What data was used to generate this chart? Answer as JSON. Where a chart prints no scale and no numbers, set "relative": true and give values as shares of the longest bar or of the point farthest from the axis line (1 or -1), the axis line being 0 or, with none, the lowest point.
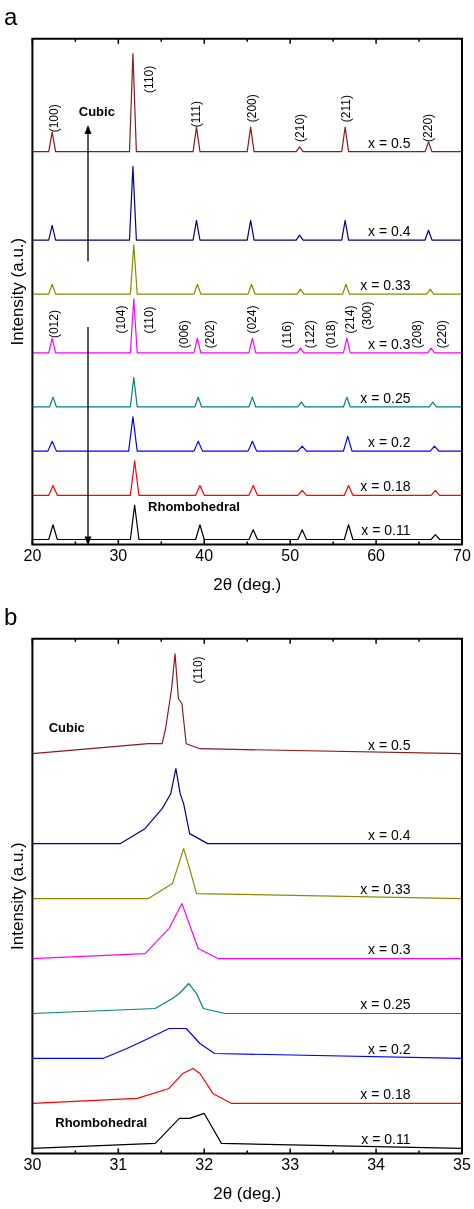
{
  "chart_data": [
    {
      "type": "line",
      "title": "a",
      "xlabel": "2θ (deg.)",
      "ylabel": "Intensity (a.u.)",
      "relative": true,
      "legend": false,
      "grid": false,
      "tick_labels": "x",
      "marker": "none",
      "line_style": "solid",
      "xlim": [
        20,
        70
      ],
      "xticks": [
        20,
        {
          "value": 25,
          "label": null
        },
        30,
        {
          "value": 35,
          "label": null
        },
        40,
        {
          "value": 45,
          "label": null
        },
        50,
        {
          "value": 55,
          "label": null
        },
        60,
        {
          "value": 65,
          "label": null
        },
        70
      ],
      "series": [
        {
          "name": "x = 0.5",
          "color": "#8b1a1a",
          "x": [
            20,
            21.9,
            22.3,
            22.7,
            31.3,
            31.7,
            32.1,
            38.7,
            39.1,
            39.5,
            45,
            45.4,
            45.8,
            50.7,
            51.1,
            51.5,
            56,
            56.4,
            56.8,
            65.7,
            66.1,
            66.5,
            70
          ],
          "values": [
            0.8,
            0.8,
            0.84,
            0.8,
            0.8,
            1.0,
            0.8,
            0.8,
            0.85,
            0.8,
            0.8,
            0.85,
            0.8,
            0.8,
            0.81,
            0.8,
            0.8,
            0.85,
            0.8,
            0.8,
            0.82,
            0.8,
            0.8
          ]
        },
        {
          "name": "x = 0.4",
          "color": "#00008b",
          "x": [
            20,
            21.9,
            22.3,
            22.7,
            31.3,
            31.7,
            32.1,
            38.7,
            39.1,
            39.5,
            45,
            45.4,
            45.8,
            50.7,
            51.1,
            51.5,
            56,
            56.4,
            56.8,
            65.7,
            66.1,
            66.5,
            70
          ],
          "values": [
            0.62,
            0.62,
            0.65,
            0.62,
            0.62,
            0.77,
            0.62,
            0.62,
            0.66,
            0.62,
            0.62,
            0.66,
            0.62,
            0.62,
            0.63,
            0.62,
            0.62,
            0.66,
            0.62,
            0.62,
            0.64,
            0.62,
            0.62
          ]
        },
        {
          "name": "x = 0.33",
          "color": "#8b8b00",
          "x": [
            20,
            21.9,
            22.3,
            22.7,
            31.4,
            31.8,
            32.2,
            38.8,
            39.2,
            39.6,
            45.1,
            45.5,
            45.9,
            50.8,
            51.2,
            51.6,
            56.1,
            56.5,
            56.9,
            65.9,
            66.3,
            66.7,
            70
          ],
          "values": [
            0.51,
            0.51,
            0.53,
            0.51,
            0.51,
            0.61,
            0.51,
            0.51,
            0.53,
            0.51,
            0.51,
            0.53,
            0.51,
            0.51,
            0.52,
            0.51,
            0.51,
            0.53,
            0.51,
            0.51,
            0.52,
            0.51,
            0.51
          ]
        },
        {
          "name": "x = 0.3",
          "color": "#ff00ff",
          "x": [
            20,
            21.9,
            22.3,
            22.7,
            31.4,
            31.8,
            32.2,
            38.8,
            39.2,
            39.6,
            45.2,
            45.6,
            46,
            50.8,
            51.2,
            51.6,
            56.2,
            56.6,
            57,
            66,
            66.4,
            66.8,
            70
          ],
          "values": [
            0.39,
            0.39,
            0.42,
            0.39,
            0.39,
            0.5,
            0.39,
            0.39,
            0.42,
            0.39,
            0.39,
            0.42,
            0.39,
            0.39,
            0.4,
            0.39,
            0.39,
            0.42,
            0.39,
            0.39,
            0.4,
            0.39,
            0.39
          ]
        },
        {
          "name": "x = 0.25",
          "color": "#008080",
          "x": [
            20,
            22,
            22.4,
            22.8,
            31.4,
            31.8,
            32.2,
            38.9,
            39.3,
            39.7,
            45.2,
            45.6,
            46,
            50.9,
            51.3,
            51.7,
            56.2,
            56.6,
            57,
            66.2,
            66.6,
            67,
            70
          ],
          "values": [
            0.28,
            0.28,
            0.3,
            0.28,
            0.28,
            0.34,
            0.28,
            0.28,
            0.3,
            0.28,
            0.28,
            0.3,
            0.28,
            0.28,
            0.29,
            0.28,
            0.28,
            0.3,
            0.28,
            0.28,
            0.29,
            0.28,
            0.28
          ]
        },
        {
          "name": "x = 0.2",
          "color": "#0000ff",
          "x": [
            20,
            21.8,
            22.3,
            22.8,
            31.2,
            31.7,
            32.2,
            38.8,
            39.3,
            39.8,
            45.1,
            45.6,
            46.1,
            50.9,
            51.4,
            51.9,
            56.2,
            56.7,
            57.2,
            66.3,
            66.8,
            67.3,
            70
          ],
          "values": [
            0.19,
            0.19,
            0.21,
            0.19,
            0.19,
            0.26,
            0.19,
            0.19,
            0.21,
            0.19,
            0.19,
            0.21,
            0.19,
            0.19,
            0.2,
            0.19,
            0.19,
            0.22,
            0.19,
            0.19,
            0.2,
            0.19,
            0.19
          ]
        },
        {
          "name": "x = 0.18",
          "color": "#ff0000",
          "x": [
            20,
            21.9,
            22.4,
            22.9,
            31.4,
            31.9,
            32.4,
            39,
            39.5,
            40,
            45.2,
            45.7,
            46.2,
            50.9,
            51.4,
            51.9,
            56.3,
            56.8,
            57.3,
            66.4,
            66.9,
            67.4,
            70
          ],
          "values": [
            0.1,
            0.1,
            0.12,
            0.1,
            0.1,
            0.17,
            0.1,
            0.1,
            0.12,
            0.1,
            0.1,
            0.12,
            0.1,
            0.1,
            0.11,
            0.1,
            0.1,
            0.12,
            0.1,
            0.1,
            0.11,
            0.1,
            0.1
          ]
        },
        {
          "name": "x = 0.11",
          "color": "#000000",
          "x": [
            20,
            21.9,
            22.4,
            22.9,
            31.4,
            31.9,
            32.4,
            39,
            39.5,
            40,
            45.2,
            45.7,
            46.2,
            50.9,
            51.4,
            51.9,
            56.3,
            56.8,
            57.3,
            66.4,
            66.9,
            67.4,
            70
          ],
          "values": [
            0.01,
            0.01,
            0.04,
            0.01,
            0.01,
            0.08,
            0.01,
            0.01,
            0.04,
            0.01,
            0.01,
            0.03,
            0.01,
            0.01,
            0.03,
            0.01,
            0.01,
            0.04,
            0.01,
            0.01,
            0.02,
            0.01,
            0.01
          ]
        }
      ],
      "annotations": [
        "Cubic",
        "Rhombohedral",
        "(100)",
        "(110)",
        "(111)",
        "(200)",
        "(210)",
        "(211)",
        "(220)",
        "(012)",
        "(104)",
        "(110)",
        "(006)",
        "(202)",
        "(024)",
        "(116)",
        "(122)",
        "(018)",
        "(214)",
        "(300)",
        "(208)",
        "(220)"
      ]
    },
    {
      "type": "line",
      "title": "b",
      "xlabel": "2θ (deg.)",
      "ylabel": "Intensity (a.u.)",
      "relative": true,
      "legend": false,
      "grid": false,
      "tick_labels": "x",
      "marker": "none",
      "line_style": "solid",
      "xlim": [
        30,
        35
      ],
      "xticks": [
        30,
        {
          "value": 30.5,
          "label": null
        },
        31,
        {
          "value": 31.5,
          "label": null
        },
        32,
        {
          "value": 32.5,
          "label": null
        },
        33,
        {
          "value": 33.5,
          "label": null
        },
        34,
        {
          "value": 34.5,
          "label": null
        },
        35
      ],
      "series": [
        {
          "name": "x = 0.5",
          "color": "#8b1a1a",
          "x": [
            30,
            31.35,
            31.51,
            31.55,
            31.62,
            31.66,
            31.7,
            31.74,
            31.79,
            31.95,
            35
          ],
          "values": [
            0.8,
            0.82,
            0.82,
            0.85,
            0.93,
            1.0,
            0.91,
            0.9,
            0.82,
            0.81,
            0.8
          ]
        },
        {
          "name": "x = 0.4",
          "color": "#00008b",
          "x": [
            30,
            31.02,
            31.31,
            31.51,
            31.61,
            31.67,
            31.72,
            31.76,
            31.83,
            32.04,
            35
          ],
          "values": [
            0.62,
            0.62,
            0.65,
            0.69,
            0.72,
            0.77,
            0.72,
            0.7,
            0.64,
            0.62,
            0.62
          ]
        },
        {
          "name": "x = 0.33",
          "color": "#8b8b00",
          "x": [
            30,
            31.35,
            31.63,
            31.76,
            31.83,
            31.91,
            35
          ],
          "values": [
            0.51,
            0.51,
            0.54,
            0.61,
            0.57,
            0.52,
            0.51
          ]
        },
        {
          "name": "x = 0.3",
          "color": "#ff00ff",
          "x": [
            30,
            31.31,
            31.59,
            31.74,
            31.93,
            32.16,
            35
          ],
          "values": [
            0.39,
            0.4,
            0.45,
            0.5,
            0.41,
            0.39,
            0.39
          ]
        },
        {
          "name": "x = 0.25",
          "color": "#008080",
          "x": [
            30,
            31.43,
            31.63,
            31.71,
            31.82,
            31.91,
            31.99,
            32.24,
            35
          ],
          "values": [
            0.28,
            0.29,
            0.31,
            0.32,
            0.34,
            0.32,
            0.29,
            0.28,
            0.28
          ]
        },
        {
          "name": "x = 0.2",
          "color": "#0000ff",
          "x": [
            30,
            30.82,
            31.1,
            31.35,
            31.59,
            31.79,
            31.95,
            32.12,
            35
          ],
          "values": [
            0.19,
            0.19,
            0.21,
            0.23,
            0.25,
            0.25,
            0.22,
            0.2,
            0.19
          ]
        },
        {
          "name": "x = 0.18",
          "color": "#ff0000",
          "x": [
            30,
            31.22,
            31.59,
            31.75,
            31.87,
            31.95,
            32.1,
            32.32,
            35
          ],
          "values": [
            0.1,
            0.11,
            0.13,
            0.16,
            0.17,
            0.16,
            0.12,
            0.1,
            0.1
          ]
        },
        {
          "name": "x = 0.11",
          "color": "#000000",
          "x": [
            30,
            31.43,
            31.71,
            31.83,
            32,
            32.2,
            35
          ],
          "values": [
            0.01,
            0.02,
            0.07,
            0.07,
            0.08,
            0.02,
            0.01
          ]
        }
      ],
      "annotations": [
        "Cubic",
        "Rhombohedral",
        "(110)"
      ]
    }
  ]
}
